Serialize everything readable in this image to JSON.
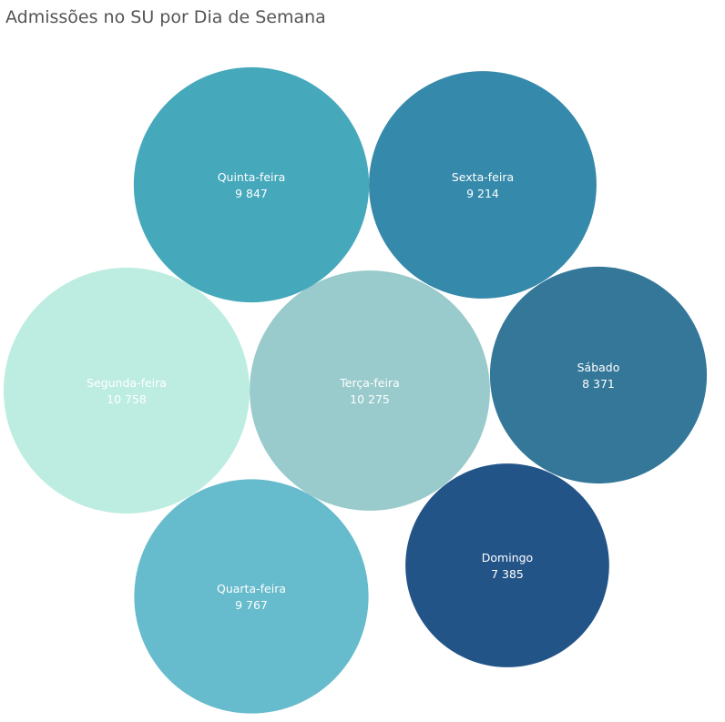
{
  "chart_data": {
    "type": "bubble",
    "title": "Admissões no SU por Dia de Semana",
    "categories": [
      "Segunda-feira",
      "Terça-feira",
      "Quarta-feira",
      "Quinta-feira",
      "Sexta-feira",
      "Sábado",
      "Domingo"
    ],
    "values": [
      10758,
      10275,
      9767,
      9847,
      9214,
      8371,
      7385
    ],
    "value_labels": [
      "10 758",
      "10 275",
      "9 767",
      "9 847",
      "9 214",
      "8 371",
      "7 385"
    ],
    "colors": [
      "#bcede0",
      "#99cacc",
      "#66bbcc",
      "#45a8bb",
      "#3589aa",
      "#347799",
      "#235488"
    ],
    "label_colors": [
      "#ffffff",
      "#ffffff",
      "#ffffff",
      "#ffffff",
      "#ffffff",
      "#ffffff",
      "#ffffff"
    ]
  }
}
